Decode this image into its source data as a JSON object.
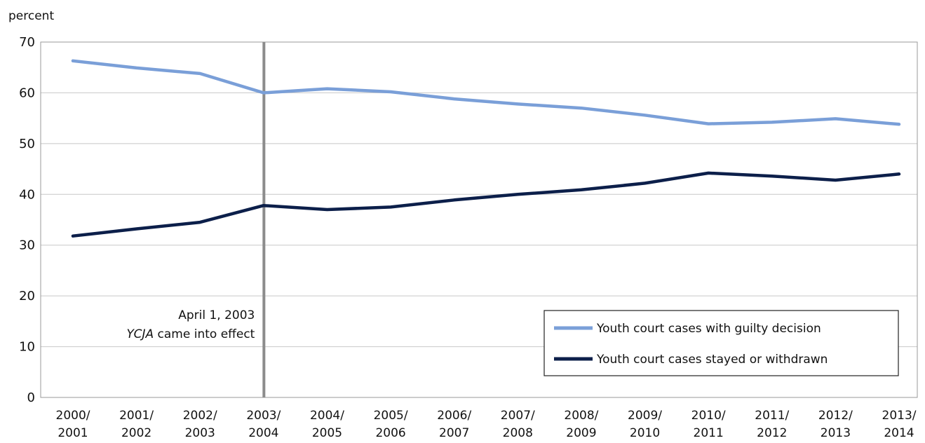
{
  "chart_data": {
    "type": "line",
    "unit_label": "percent",
    "ylim": [
      0,
      70
    ],
    "yticks": [
      0,
      10,
      20,
      30,
      40,
      50,
      60,
      70
    ],
    "grid": true,
    "legend_position": "bottom-right",
    "categories": [
      [
        "2000/",
        "2001"
      ],
      [
        "2001/",
        "2002"
      ],
      [
        "2002/",
        "2003"
      ],
      [
        "2003/",
        "2004"
      ],
      [
        "2004/",
        "2005"
      ],
      [
        "2005/",
        "2006"
      ],
      [
        "2006/",
        "2007"
      ],
      [
        "2007/",
        "2008"
      ],
      [
        "2008/",
        "2009"
      ],
      [
        "2009/",
        "2010"
      ],
      [
        "2010/",
        "2011"
      ],
      [
        "2011/",
        "2012"
      ],
      [
        "2012/",
        "2013"
      ],
      [
        "2013/",
        "2014"
      ]
    ],
    "series": [
      {
        "name": "Youth court cases with guilty decision",
        "color": "#7a9fd8",
        "values": [
          66.3,
          64.9,
          63.8,
          60.0,
          60.8,
          60.2,
          58.8,
          57.8,
          57.0,
          55.6,
          53.9,
          54.2,
          54.9,
          53.8
        ]
      },
      {
        "name": "Youth court cases stayed or withdrawn",
        "color": "#0c1f4a",
        "values": [
          31.8,
          33.2,
          34.5,
          37.8,
          37.0,
          37.5,
          38.9,
          40.0,
          40.9,
          42.2,
          44.2,
          43.6,
          42.8,
          44.0
        ]
      }
    ],
    "annotation": {
      "category_index": 3,
      "line1": "April 1, 2003",
      "line2_italic": "YCJA",
      "line2_rest": " came into effect",
      "color": "#8c8c8c"
    }
  }
}
